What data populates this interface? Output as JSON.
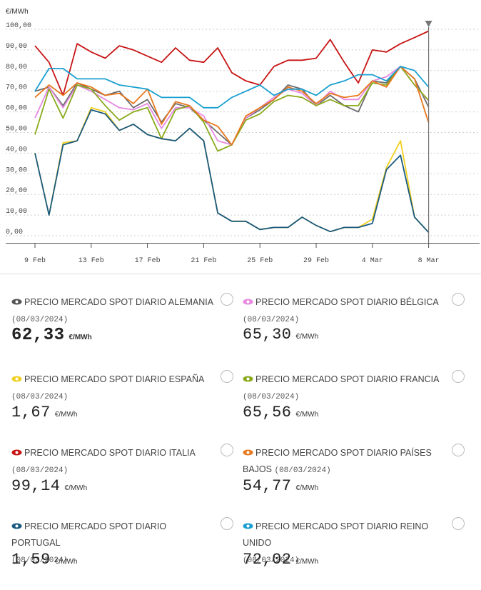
{
  "chart_data": {
    "type": "line",
    "ylabel": "€/MWh",
    "ylim": [
      0,
      100
    ],
    "y_ticks": [
      "0,00",
      "10,00",
      "20,00",
      "30,00",
      "40,00",
      "50,00",
      "60,00",
      "70,00",
      "80,00",
      "90,00",
      "100,00"
    ],
    "x_tick_labels": [
      "9 Feb",
      "13 Feb",
      "17 Feb",
      "21 Feb",
      "25 Feb",
      "29 Feb",
      "4 Mar",
      "8 Mar"
    ],
    "x_tick_positions": [
      0,
      4,
      8,
      12,
      16,
      20,
      24,
      28
    ],
    "x_days": [
      0,
      1,
      2,
      3,
      4,
      5,
      6,
      7,
      8,
      9,
      10,
      11,
      12,
      13,
      14,
      15,
      16,
      17,
      18,
      19,
      20,
      21,
      22,
      23,
      24,
      25,
      26,
      27,
      28
    ],
    "grid": true,
    "marker_day": 28,
    "series": [
      {
        "name": "PRECIO MERCADO SPOT DIARIO ALEMANIA",
        "color": "#6d6d6d",
        "values": [
          70,
          72,
          63,
          74,
          71,
          68,
          70,
          62,
          66,
          55,
          64,
          62,
          56,
          50,
          44,
          57,
          61,
          66,
          73,
          71,
          63,
          68,
          63,
          60,
          75,
          74,
          82,
          76,
          62.33
        ]
      },
      {
        "name": "PRECIO MERCADO SPOT DIARIO BÉLGICA",
        "color": "#e58ae0",
        "values": [
          57,
          72,
          62,
          73,
          70,
          66,
          62,
          61,
          64,
          52,
          62,
          62,
          58,
          46,
          44,
          57,
          62,
          67,
          71,
          69,
          63,
          70,
          66,
          66,
          75,
          77,
          82,
          73,
          65.3
        ]
      },
      {
        "name": "PRECIO MERCADO SPOT DIARIO ESPAÑA",
        "color": "#f0d020",
        "values": [
          40,
          10,
          45,
          46,
          62,
          60,
          51,
          54,
          49,
          47,
          46,
          52,
          46,
          11,
          7,
          7,
          3,
          4,
          4,
          9,
          5,
          2,
          4,
          4,
          8,
          33,
          46,
          9,
          1.67
        ]
      },
      {
        "name": "PRECIO MERCADO SPOT DIARIO FRANCIA",
        "color": "#8aaa1c",
        "values": [
          49,
          71,
          57,
          73,
          71,
          63,
          56,
          60,
          62,
          47,
          61,
          63,
          55,
          41,
          44,
          56,
          59,
          65,
          68,
          67,
          63,
          66,
          63,
          63,
          74,
          73,
          82,
          73,
          65.56
        ]
      },
      {
        "name": "PRECIO MERCADO SPOT DIARIO ITALIA",
        "color": "#c81414",
        "values": [
          92,
          84,
          68,
          93,
          89,
          86,
          92,
          90,
          87,
          84,
          91,
          85,
          84,
          91,
          79,
          75,
          73,
          82,
          85,
          85,
          86,
          95,
          84,
          74,
          90,
          89,
          93,
          96,
          99.14
        ]
      },
      {
        "name": "PRECIO MERCADO SPOT DIARIO PAÍSES BAJOS",
        "color": "#e8781e",
        "values": [
          67,
          73,
          68,
          74,
          72,
          68,
          69,
          64,
          71,
          54,
          65,
          63,
          56,
          53,
          44,
          58,
          62,
          66,
          72,
          70,
          64,
          69,
          67,
          68,
          75,
          72,
          82,
          76,
          54.77
        ]
      },
      {
        "name": "PRECIO MERCADO SPOT DIARIO PORTUGAL",
        "color": "#1a5a80",
        "values": [
          40,
          10,
          44,
          46,
          61,
          59,
          51,
          54,
          49,
          47,
          46,
          52,
          46,
          11,
          7,
          7,
          3,
          4,
          4,
          9,
          5,
          2,
          4,
          4,
          6,
          32,
          39,
          9,
          1.59
        ]
      },
      {
        "name": "PRECIO MERCADO SPOT DIARIO REINO UNIDO",
        "color": "#1aa0d0",
        "values": [
          70,
          81,
          81,
          76,
          76,
          76,
          73,
          72,
          71,
          67,
          67,
          67,
          62,
          62,
          67,
          70,
          73,
          68,
          71,
          71,
          68,
          73,
          75,
          78,
          78,
          75,
          82,
          80,
          72.02
        ]
      }
    ]
  },
  "cards": [
    {
      "title": "PRECIO MERCADO SPOT DIARIO ALEMANIA",
      "date": "(08/03/2024)",
      "value": "62,33",
      "unit": "€/MWh",
      "eye_color": "#555555"
    },
    {
      "title": "PRECIO MERCADO SPOT DIARIO BÉLGICA",
      "date": "(08/03/2024)",
      "value": "65,30",
      "unit": "€/MWh",
      "eye_color": "#e58ae0"
    },
    {
      "title": "PRECIO MERCADO SPOT DIARIO ESPAÑA",
      "date": "(08/03/2024)",
      "value": "1,67",
      "unit": "€/MWh",
      "eye_color": "#f0d020"
    },
    {
      "title": "PRECIO MERCADO SPOT DIARIO FRANCIA",
      "date": "(08/03/2024)",
      "value": "65,56",
      "unit": "€/MWh",
      "eye_color": "#8aaa1c"
    },
    {
      "title": "PRECIO MERCADO SPOT DIARIO ITALIA",
      "date": "(08/03/2024)",
      "value": "99,14",
      "unit": "€/MWh",
      "eye_color": "#c81414"
    },
    {
      "title": "PRECIO MERCADO SPOT DIARIO PAÍSES",
      "title2": "BAJOS",
      "date": "(08/03/2024)",
      "value": "54,77",
      "unit": "€/MWh",
      "eye_color": "#e8781e"
    },
    {
      "title": "PRECIO MERCADO SPOT DIARIO PORTUGAL",
      "date": "(08/03/2024)",
      "value": "1,59",
      "unit": "€/MWh",
      "eye_color": "#1a5a80"
    },
    {
      "title": "PRECIO MERCADO SPOT DIARIO REINO UNIDO",
      "date": "(08/03/2024)",
      "value": "72,02",
      "unit": "€/MWh",
      "eye_color": "#1aa0d0"
    }
  ]
}
